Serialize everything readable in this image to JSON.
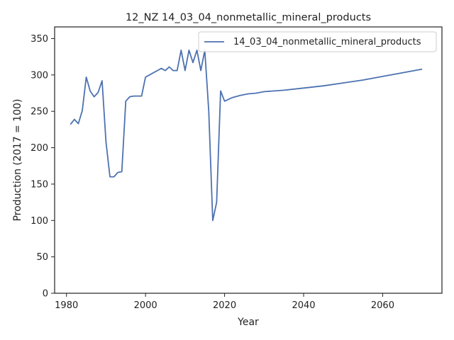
{
  "chart_data": {
    "type": "line",
    "title": "12_NZ 14_03_04_nonmetallic_mineral_products",
    "xlabel": "Year",
    "ylabel": "Production (2017 = 100)",
    "xlim": [
      1977,
      2075
    ],
    "ylim": [
      0,
      366
    ],
    "xticks": [
      1980,
      2000,
      2020,
      2040,
      2060
    ],
    "yticks": [
      0,
      50,
      100,
      150,
      200,
      250,
      300,
      350
    ],
    "grid": false,
    "legend": "top-right",
    "series": [
      {
        "name": "14_03_04_nonmetallic_mineral_products",
        "color": "#4c72b0",
        "x": [
          1981,
          1982,
          1983,
          1984,
          1985,
          1986,
          1987,
          1988,
          1989,
          1990,
          1991,
          1992,
          1993,
          1994,
          1995,
          1996,
          1997,
          1998,
          1999,
          2000,
          2001,
          2002,
          2003,
          2004,
          2005,
          2006,
          2007,
          2008,
          2009,
          2010,
          2011,
          2012,
          2013,
          2014,
          2015,
          2016,
          2017,
          2018,
          2019,
          2020,
          2022,
          2024,
          2026,
          2028,
          2030,
          2035,
          2040,
          2045,
          2050,
          2055,
          2060,
          2065,
          2070
        ],
        "values": [
          232,
          239,
          233,
          251,
          297,
          278,
          270,
          276,
          292,
          208,
          160,
          160,
          166,
          167,
          264,
          270,
          271,
          271,
          271,
          297,
          300,
          303,
          306,
          309,
          306,
          311,
          306,
          306,
          334,
          306,
          334,
          317,
          334,
          306,
          334,
          250,
          100,
          125,
          278,
          264,
          269,
          272,
          274,
          275,
          277,
          279,
          282,
          285,
          289,
          293,
          298,
          303,
          308
        ]
      }
    ]
  }
}
